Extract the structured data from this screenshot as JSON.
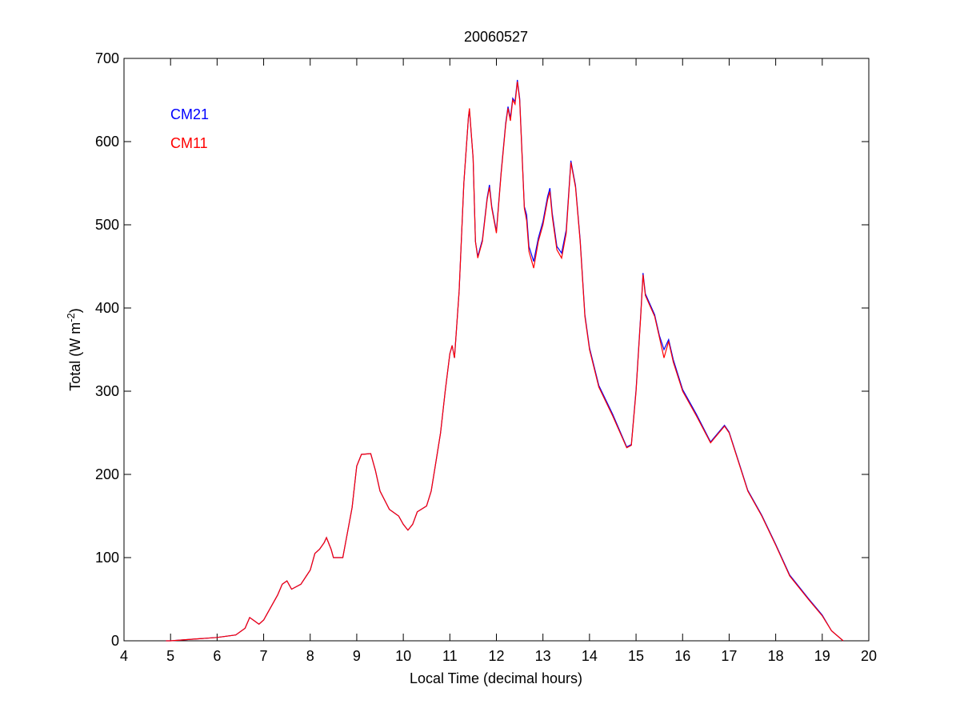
{
  "chart_data": {
    "type": "line",
    "title": "20060527",
    "xlabel": "Local Time (decimal hours)",
    "ylabel_main": "Total (W m",
    "ylabel_sup": "-2",
    "ylabel_end": ")",
    "xlim": [
      4,
      20
    ],
    "ylim": [
      0,
      700
    ],
    "xticks": [
      4,
      5,
      6,
      7,
      8,
      9,
      10,
      11,
      12,
      13,
      14,
      15,
      16,
      17,
      18,
      19,
      20
    ],
    "yticks": [
      0,
      100,
      200,
      300,
      400,
      500,
      600,
      700
    ],
    "grid": false,
    "legend_position": "top-left",
    "x": [
      4.9,
      5.0,
      5.5,
      6.0,
      6.4,
      6.6,
      6.7,
      6.8,
      6.9,
      7.0,
      7.1,
      7.3,
      7.4,
      7.5,
      7.6,
      7.8,
      8.0,
      8.1,
      8.2,
      8.3,
      8.35,
      8.45,
      8.5,
      8.7,
      8.8,
      8.9,
      9.0,
      9.1,
      9.3,
      9.4,
      9.5,
      9.7,
      9.9,
      10.0,
      10.1,
      10.2,
      10.3,
      10.5,
      10.6,
      10.7,
      10.8,
      10.9,
      11.0,
      11.05,
      11.1,
      11.2,
      11.3,
      11.4,
      11.42,
      11.5,
      11.55,
      11.6,
      11.7,
      11.8,
      11.85,
      11.9,
      12.0,
      12.1,
      12.2,
      12.25,
      12.3,
      12.35,
      12.4,
      12.45,
      12.5,
      12.6,
      12.65,
      12.7,
      12.8,
      12.9,
      13.0,
      13.1,
      13.15,
      13.2,
      13.3,
      13.4,
      13.5,
      13.6,
      13.7,
      13.8,
      13.9,
      14.0,
      14.2,
      14.5,
      14.8,
      14.9,
      15.0,
      15.1,
      15.15,
      15.2,
      15.4,
      15.5,
      15.6,
      15.7,
      15.8,
      16.0,
      16.3,
      16.6,
      16.9,
      17.0,
      17.2,
      17.4,
      17.7,
      18.0,
      18.3,
      18.7,
      19.0,
      19.2,
      19.45
    ],
    "series": [
      {
        "name": "CM21",
        "color": "#0000ff",
        "values": [
          0,
          0,
          2,
          4,
          7,
          15,
          28,
          24,
          20,
          25,
          35,
          55,
          68,
          72,
          62,
          68,
          85,
          105,
          110,
          118,
          124,
          110,
          100,
          100,
          130,
          160,
          210,
          224,
          225,
          205,
          180,
          158,
          150,
          140,
          133,
          140,
          155,
          162,
          180,
          215,
          250,
          300,
          345,
          355,
          340,
          420,
          550,
          630,
          638,
          580,
          480,
          462,
          482,
          532,
          548,
          522,
          492,
          562,
          622,
          642,
          628,
          652,
          648,
          674,
          652,
          522,
          512,
          474,
          456,
          484,
          504,
          534,
          544,
          514,
          474,
          466,
          494,
          577,
          547,
          482,
          392,
          352,
          307,
          272,
          233,
          236,
          302,
          392,
          442,
          417,
          392,
          367,
          350,
          362,
          338,
          302,
          272,
          239,
          259,
          251,
          216,
          181,
          151,
          116,
          79,
          51,
          31,
          12,
          0
        ]
      },
      {
        "name": "CM11",
        "color": "#ff0000",
        "values": [
          0,
          0,
          2,
          4,
          7,
          15,
          28,
          24,
          20,
          25,
          35,
          55,
          68,
          72,
          62,
          68,
          85,
          105,
          110,
          118,
          124,
          110,
          100,
          100,
          130,
          160,
          210,
          224,
          225,
          205,
          180,
          158,
          150,
          140,
          133,
          140,
          155,
          162,
          180,
          215,
          250,
          300,
          345,
          355,
          340,
          420,
          550,
          630,
          640,
          580,
          480,
          460,
          480,
          530,
          545,
          520,
          490,
          560,
          620,
          640,
          625,
          650,
          645,
          672,
          650,
          520,
          505,
          468,
          448,
          480,
          500,
          530,
          540,
          510,
          470,
          460,
          490,
          575,
          545,
          480,
          390,
          350,
          305,
          270,
          232,
          235,
          300,
          390,
          440,
          415,
          390,
          365,
          340,
          360,
          335,
          300,
          270,
          238,
          258,
          250,
          215,
          180,
          150,
          115,
          78,
          50,
          30,
          12,
          0
        ]
      }
    ]
  }
}
